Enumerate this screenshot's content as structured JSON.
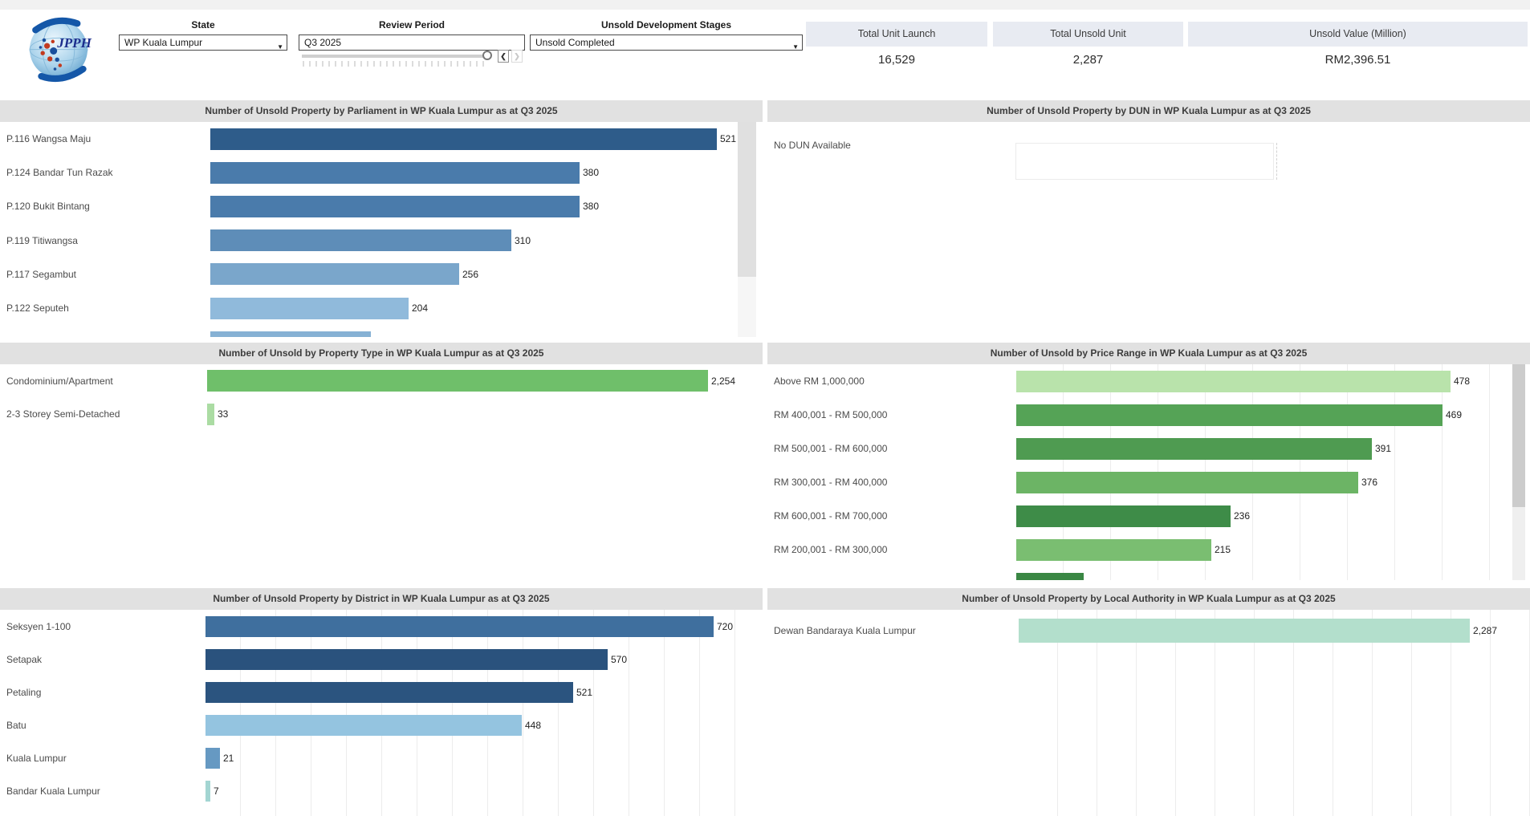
{
  "header": {
    "logo": {
      "text": "JPPH"
    },
    "filters": {
      "state": {
        "label": "State",
        "value": "WP Kuala Lumpur"
      },
      "review_period": {
        "label": "Review Period",
        "value": "Q3 2025",
        "prev": "❮",
        "next": "❯"
      },
      "stages": {
        "label": "Unsold Development Stages",
        "value": "Unsold Completed"
      }
    },
    "kpis": [
      {
        "label": "Total Unit Launch",
        "value": "16,529"
      },
      {
        "label": "Total Unsold Unit",
        "value": "2,287"
      },
      {
        "label": "Unsold Value (Million)",
        "value": "RM2,396.51"
      }
    ]
  },
  "chart_data": [
    {
      "id": "parliament",
      "type": "bar",
      "orientation": "horizontal",
      "title": "Number of Unsold Property by Parliament in WP Kuala Lumpur as at Q3 2025",
      "categories": [
        "P.116 Wangsa Maju",
        "P.124 Bandar Tun Razak",
        "P.120 Bukit Bintang",
        "P.119 Titiwangsa",
        "P.117 Segambut",
        "P.122 Seputeh"
      ],
      "values": [
        521,
        380,
        380,
        310,
        256,
        204
      ],
      "value_labels": [
        "521",
        "380",
        "380",
        "310",
        "256",
        "204"
      ],
      "bar_colors": [
        "#2e5c8a",
        "#4a7bab",
        "#4a7bab",
        "#5e8db8",
        "#7aa6cb",
        "#90badb"
      ],
      "xlim": [
        0,
        568
      ],
      "grid": false,
      "scrollable": true,
      "partial_bar": {
        "value": 165,
        "color": "#86b1d4",
        "note": "next row clipped by panel edge"
      }
    },
    {
      "id": "dun",
      "type": "bar",
      "orientation": "horizontal",
      "title": "Number of Unsold Property by DUN in WP Kuala Lumpur as at Q3 2025",
      "categories": [
        "No DUN Available"
      ],
      "values": [
        null
      ],
      "value_labels": [
        ""
      ],
      "bar_colors": [
        null
      ],
      "xlim": [
        0,
        1
      ],
      "grid": false
    },
    {
      "id": "property",
      "type": "bar",
      "orientation": "horizontal",
      "title": "Number of Unsold by Property Type in WP Kuala Lumpur as at Q3 2025",
      "categories": [
        "Condominium/Apartment",
        "2-3 Storey Semi-Detached"
      ],
      "values": [
        2254,
        33
      ],
      "value_labels": [
        "2,254",
        "33"
      ],
      "bar_colors": [
        "#6fbf6a",
        "#abdca3"
      ],
      "xlim": [
        0,
        2500
      ],
      "grid": false
    },
    {
      "id": "price",
      "type": "bar",
      "orientation": "horizontal",
      "title": "Number of Unsold by Price Range in WP Kuala Lumpur as at Q3 2025",
      "categories": [
        "Above RM 1,000,000",
        "RM 400,001 - RM 500,000",
        "RM 500,001 - RM 600,000",
        "RM 300,001 - RM 400,000",
        "RM 600,001 - RM 700,000",
        "RM 200,001 - RM 300,000"
      ],
      "values": [
        478,
        469,
        391,
        376,
        236,
        215
      ],
      "value_labels": [
        "478",
        "469",
        "391",
        "376",
        "236",
        "215"
      ],
      "bar_colors": [
        "#b9e3ab",
        "#55a356",
        "#4f9b51",
        "#6cb465",
        "#3e8c48",
        "#7abe71"
      ],
      "xlim": [
        0,
        545
      ],
      "grid": true,
      "scrollable": true,
      "partial_bar": {
        "value": 74,
        "color": "#3a8744",
        "note": "next row clipped by panel edge"
      }
    },
    {
      "id": "district",
      "type": "bar",
      "orientation": "horizontal",
      "title": "Number of Unsold Property by District in WP Kuala Lumpur as at Q3 2025",
      "categories": [
        "Seksyen 1-100",
        "Setapak",
        "Petaling",
        "Batu",
        "Kuala Lumpur",
        "Bandar Kuala Lumpur"
      ],
      "values": [
        720,
        570,
        521,
        448,
        21,
        7
      ],
      "value_labels": [
        "720",
        "570",
        "521",
        "448",
        "21",
        "7"
      ],
      "bar_colors": [
        "#3f6f9e",
        "#2a527d",
        "#2b547f",
        "#94c4e0",
        "#6699c2",
        "#a3d5d2"
      ],
      "xlim": [
        0,
        790
      ],
      "grid": true
    },
    {
      "id": "local",
      "type": "bar",
      "orientation": "horizontal",
      "title": "Number of Unsold Property by Local Authority in WP Kuala Lumpur as at Q3 2025",
      "categories": [
        "Dewan Bandaraya Kuala Lumpur"
      ],
      "values": [
        2287
      ],
      "value_labels": [
        "2,287"
      ],
      "bar_colors": [
        "#b3dfcc"
      ],
      "xlim": [
        0,
        2590
      ],
      "grid": true
    }
  ]
}
